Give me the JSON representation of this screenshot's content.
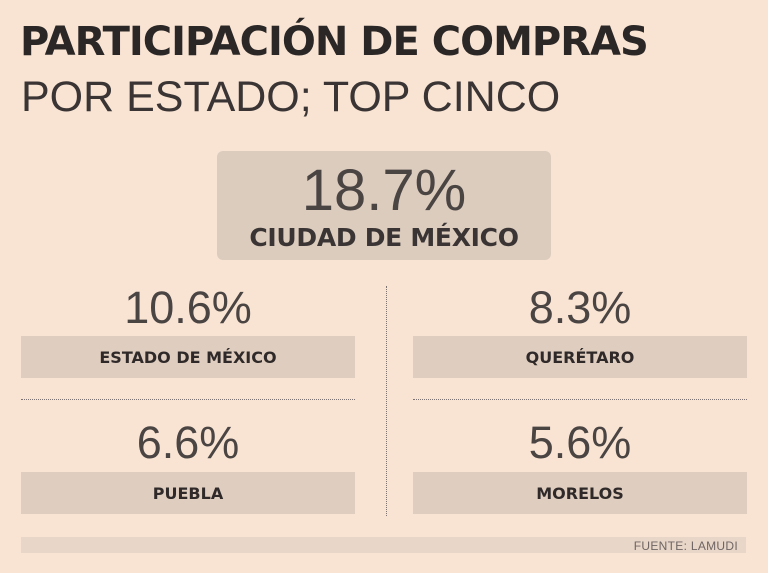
{
  "title": "PARTICIPACIÓN DE COMPRAS",
  "subtitle": "POR ESTADO; TOP CINCO",
  "source": "FUENTE: LAMUDI",
  "chart_data": {
    "type": "table",
    "title": "PARTICIPACIÓN DE COMPRAS POR ESTADO; TOP CINCO",
    "unit": "%",
    "categories": [
      "CIUDAD DE MÉXICO",
      "ESTADO DE MÉXICO",
      "QUERÉTARO",
      "PUEBLA",
      "MORELOS"
    ],
    "values": [
      18.7,
      10.6,
      8.3,
      6.6,
      5.6
    ],
    "display": [
      "18.7%",
      "10.6%",
      "8.3%",
      "6.6%",
      "5.6%"
    ]
  }
}
